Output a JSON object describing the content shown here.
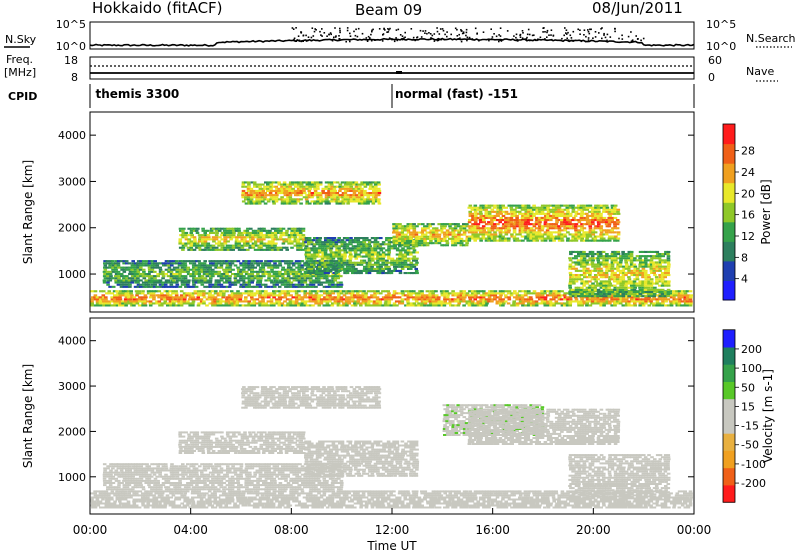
{
  "header": {
    "station": "Hokkaido (fitACF)",
    "beam": "Beam 09",
    "date": "08/Jun/2011"
  },
  "aux_panels": {
    "nsky_label": "N.Sky",
    "nsearch_label": "N.Search",
    "nsky_ticks": [
      "10^5",
      "10^0"
    ],
    "nsearch_ticks": [
      "10^5",
      "10^0"
    ],
    "freq_label_1": "Freq.",
    "freq_label_2": "[MHz]",
    "freq_ticks": [
      "18",
      "8"
    ],
    "nave_label": "Nave",
    "nave_ticks": [
      "60",
      "0"
    ],
    "cpid_label": "CPID",
    "cpid_entries": [
      {
        "time_h": 0.1,
        "text": "themis 3300"
      },
      {
        "time_h": 12.0,
        "text": "normal (fast) -151"
      }
    ]
  },
  "chart_data": [
    {
      "type": "heatmap",
      "name_role": "power",
      "ylabel": "Slant Range [km]",
      "colorbar_label": "Power [dB]",
      "xlim": [
        0,
        24
      ],
      "ylim": [
        180,
        4500
      ],
      "yticks": [
        "1000",
        "2000",
        "3000",
        "4000"
      ],
      "yticks_km": [
        1000,
        2000,
        3000,
        4000
      ],
      "colorbar_ticks": [
        "4",
        "8",
        "12",
        "16",
        "20",
        "24",
        "28"
      ],
      "colorbar_range": [
        0,
        30
      ],
      "colors": [
        "#1f1fff",
        "#1f3fb0",
        "#2d7f5e",
        "#35a24a",
        "#8fc828",
        "#e8e82a",
        "#f0a020",
        "#f06018",
        "#ff1c1c"
      ],
      "echo_regions": [
        {
          "t0": 0.0,
          "t1": 24.0,
          "r0": 300,
          "r1": 650,
          "v": 26
        },
        {
          "t0": 0.5,
          "t1": 10.0,
          "r0": 700,
          "r1": 1300,
          "v": 14
        },
        {
          "t0": 3.5,
          "t1": 8.5,
          "r0": 1500,
          "r1": 2000,
          "v": 20
        },
        {
          "t0": 6.0,
          "t1": 11.5,
          "r0": 2500,
          "r1": 3000,
          "v": 24
        },
        {
          "t0": 8.5,
          "t1": 13.0,
          "r0": 1000,
          "r1": 1800,
          "v": 16
        },
        {
          "t0": 12.0,
          "t1": 15.0,
          "r0": 1600,
          "r1": 2100,
          "v": 22
        },
        {
          "t0": 15.0,
          "t1": 21.0,
          "r0": 1700,
          "r1": 2500,
          "v": 26
        },
        {
          "t0": 19.0,
          "t1": 23.0,
          "r0": 500,
          "r1": 1500,
          "v": 20
        }
      ]
    },
    {
      "type": "heatmap",
      "name_role": "velocity",
      "ylabel": "Slant Range [km]",
      "colorbar_label": "Velocity [m s-1]",
      "xlabel": "Time UT",
      "xlim": [
        0,
        24
      ],
      "ylim": [
        180,
        4500
      ],
      "yticks": [
        "1000",
        "2000",
        "3000",
        "4000"
      ],
      "yticks_km": [
        1000,
        2000,
        3000,
        4000
      ],
      "xticks": [
        "00:00",
        "04:00",
        "08:00",
        "12:00",
        "16:00",
        "20:00",
        "00:00"
      ],
      "xticks_h": [
        0,
        4,
        8,
        12,
        16,
        20,
        24
      ],
      "colorbar_ticks": [
        "200",
        "100",
        "50",
        "15",
        "-15",
        "-50",
        "-100",
        "-200"
      ],
      "colorbar_range": [
        -250,
        250
      ],
      "colors": [
        "#ff1c1c",
        "#f06018",
        "#f0a020",
        "#e8b040",
        "#c8c8c0",
        "#c8c8c0",
        "#58c828",
        "#35a24a",
        "#1f7f5e",
        "#1f1fff"
      ],
      "echo_regions": [
        {
          "t0": 0.0,
          "t1": 24.0,
          "r0": 300,
          "r1": 700,
          "v": 0
        },
        {
          "t0": 0.5,
          "t1": 10.0,
          "r0": 700,
          "r1": 1300,
          "v": -5
        },
        {
          "t0": 3.5,
          "t1": 8.5,
          "r0": 1500,
          "r1": 2000,
          "v": 5
        },
        {
          "t0": 6.0,
          "t1": 11.5,
          "r0": 2500,
          "r1": 3000,
          "v": 0
        },
        {
          "t0": 8.5,
          "t1": 13.0,
          "r0": 1000,
          "r1": 1800,
          "v": -10
        },
        {
          "t0": 14.0,
          "t1": 18.0,
          "r0": 1900,
          "r1": 2600,
          "v": 40
        },
        {
          "t0": 15.0,
          "t1": 21.0,
          "r0": 1700,
          "r1": 2500,
          "v": 5
        },
        {
          "t0": 19.0,
          "t1": 23.0,
          "r0": 500,
          "r1": 1500,
          "v": 0
        }
      ]
    }
  ]
}
